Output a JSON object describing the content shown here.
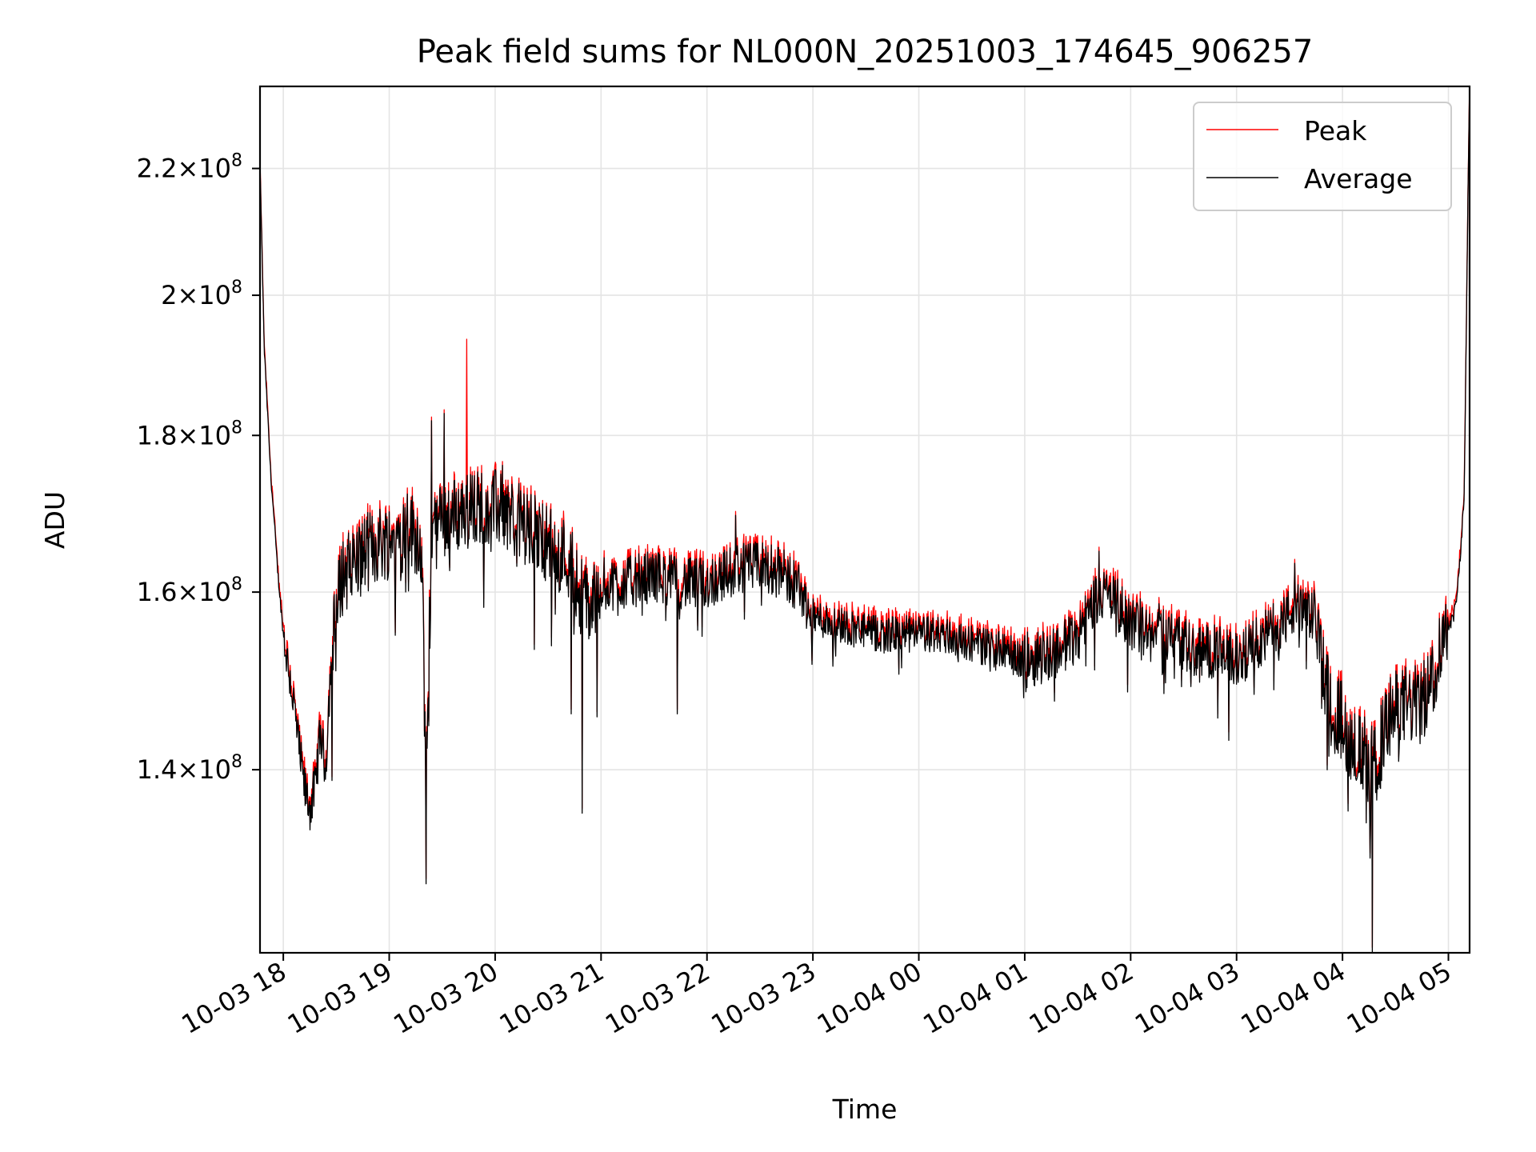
{
  "chart_data": {
    "type": "line",
    "title": "Peak field sums for NL000N_20251003_174645_906257",
    "xlabel": "Time",
    "ylabel": "ADU",
    "y_scale": "log",
    "ylim": [
      122000000,
      234000000
    ],
    "x_range_hours": [
      17.78,
      29.2
    ],
    "x_ticks": [
      {
        "hour": 18,
        "label": "10-03 18"
      },
      {
        "hour": 19,
        "label": "10-03 19"
      },
      {
        "hour": 20,
        "label": "10-03 20"
      },
      {
        "hour": 21,
        "label": "10-03 21"
      },
      {
        "hour": 22,
        "label": "10-03 22"
      },
      {
        "hour": 23,
        "label": "10-03 23"
      },
      {
        "hour": 24,
        "label": "10-04 00"
      },
      {
        "hour": 25,
        "label": "10-04 01"
      },
      {
        "hour": 26,
        "label": "10-04 02"
      },
      {
        "hour": 27,
        "label": "10-04 03"
      },
      {
        "hour": 28,
        "label": "10-04 04"
      },
      {
        "hour": 29,
        "label": "10-04 05"
      }
    ],
    "y_ticks": [
      {
        "value": 140000000,
        "mantissa": "1.4",
        "base": "10",
        "exp": "8"
      },
      {
        "value": 160000000,
        "mantissa": "1.6",
        "base": "10",
        "exp": "8"
      },
      {
        "value": 180000000,
        "mantissa": "1.8",
        "base": "10",
        "exp": "8"
      },
      {
        "value": 200000000,
        "mantissa": "2",
        "base": "10",
        "exp": "8"
      },
      {
        "value": 220000000,
        "mantissa": "2.2",
        "base": "10",
        "exp": "8"
      }
    ],
    "grid": true,
    "legend_position": "top-right",
    "series": [
      {
        "name": "Peak",
        "color": "#ff0000"
      },
      {
        "name": "Average",
        "color": "#000000"
      }
    ],
    "trend_points": [
      [
        17.78,
        220
      ],
      [
        17.82,
        192
      ],
      [
        17.88,
        175
      ],
      [
        17.95,
        162
      ],
      [
        18.0,
        155
      ],
      [
        18.05,
        151
      ],
      [
        18.1,
        147
      ],
      [
        18.15,
        142
      ],
      [
        18.2,
        138
      ],
      [
        18.25,
        136
      ],
      [
        18.3,
        138
      ],
      [
        18.35,
        144
      ],
      [
        18.4,
        140
      ],
      [
        18.45,
        152
      ],
      [
        18.55,
        162
      ],
      [
        18.7,
        164
      ],
      [
        18.9,
        166
      ],
      [
        19.1,
        167
      ],
      [
        19.2,
        168
      ],
      [
        19.3,
        166
      ],
      [
        19.35,
        138
      ],
      [
        19.4,
        167
      ],
      [
        19.5,
        169
      ],
      [
        19.7,
        170
      ],
      [
        19.9,
        171
      ],
      [
        20.1,
        170
      ],
      [
        20.3,
        168
      ],
      [
        20.5,
        166
      ],
      [
        20.7,
        164
      ],
      [
        20.8,
        160
      ],
      [
        20.9,
        158
      ],
      [
        21.0,
        161
      ],
      [
        21.2,
        161
      ],
      [
        21.5,
        162
      ],
      [
        21.8,
        161
      ],
      [
        22.0,
        161
      ],
      [
        22.3,
        163
      ],
      [
        22.6,
        163
      ],
      [
        22.85,
        161
      ],
      [
        23.0,
        157
      ],
      [
        23.3,
        156
      ],
      [
        23.6,
        155
      ],
      [
        23.9,
        155
      ],
      [
        24.2,
        155
      ],
      [
        24.5,
        154
      ],
      [
        24.8,
        153
      ],
      [
        25.0,
        152
      ],
      [
        25.3,
        153
      ],
      [
        25.5,
        155
      ],
      [
        25.7,
        160
      ],
      [
        25.85,
        159
      ],
      [
        26.0,
        156
      ],
      [
        26.2,
        156
      ],
      [
        26.4,
        155
      ],
      [
        26.6,
        153
      ],
      [
        26.8,
        153
      ],
      [
        27.0,
        152
      ],
      [
        27.2,
        154
      ],
      [
        27.4,
        156
      ],
      [
        27.55,
        158
      ],
      [
        27.75,
        157
      ],
      [
        27.85,
        149
      ],
      [
        28.0,
        145
      ],
      [
        28.15,
        142
      ],
      [
        28.3,
        140
      ],
      [
        28.45,
        146
      ],
      [
        28.6,
        147
      ],
      [
        28.75,
        147
      ],
      [
        28.85,
        150
      ],
      [
        28.95,
        155
      ],
      [
        29.05,
        157
      ],
      [
        29.1,
        162
      ],
      [
        29.15,
        172
      ],
      [
        29.2,
        234
      ]
    ],
    "spikes": [
      {
        "hour": 19.35,
        "value": 128.5,
        "series": "both"
      },
      {
        "hour": 19.4,
        "value": 182,
        "series": "both"
      },
      {
        "hour": 19.52,
        "value": 183,
        "series": "both"
      },
      {
        "hour": 19.73,
        "value": 193.5,
        "series": "Peak"
      },
      {
        "hour": 20.07,
        "value": 176,
        "series": "both"
      },
      {
        "hour": 20.72,
        "value": 146,
        "series": "both"
      },
      {
        "hour": 20.82,
        "value": 135.5,
        "series": "both"
      },
      {
        "hour": 21.72,
        "value": 146,
        "series": "both"
      },
      {
        "hour": 22.27,
        "value": 169.5,
        "series": "both"
      },
      {
        "hour": 25.7,
        "value": 165,
        "series": "both"
      },
      {
        "hour": 27.55,
        "value": 163.5,
        "series": "both"
      },
      {
        "hour": 28.28,
        "value": 122,
        "series": "both"
      },
      {
        "hour": 28.26,
        "value": 131,
        "series": "both"
      }
    ]
  }
}
